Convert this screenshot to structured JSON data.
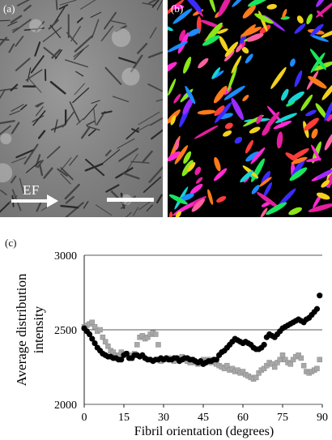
{
  "panels": {
    "a_label": "(a)",
    "b_label": "(b)",
    "c_label": "(c)",
    "ef_label": "EF"
  },
  "colors": {
    "fibril_palette": [
      "#e61ea0",
      "#ff2ad4",
      "#ff3b3b",
      "#ff7a1a",
      "#f2d21b",
      "#8be61a",
      "#19e65c",
      "#1ad4d4",
      "#1a8cff",
      "#3b2bff",
      "#9b2bff",
      "#ff5fa0"
    ],
    "series_black": "#000000",
    "series_gray": "#a8a8a8"
  },
  "chart_data": {
    "type": "scatter",
    "title": "",
    "xlabel": "Fibril orientation (degrees)",
    "ylabel": "Average distribution intensity",
    "xlim": [
      0,
      90
    ],
    "ylim": [
      2000,
      3000
    ],
    "xticks": [
      0,
      15,
      30,
      45,
      60,
      75,
      90
    ],
    "yticks": [
      2000,
      2500,
      3000
    ],
    "grid": "horizontal",
    "legend": "none",
    "series": [
      {
        "marker": "circle",
        "color": "#000000",
        "x": [
          0,
          1,
          2,
          3,
          4,
          5,
          6,
          7,
          8,
          9,
          10,
          11,
          12,
          13,
          14,
          15,
          16,
          17,
          18,
          19,
          20,
          21,
          22,
          23,
          24,
          25,
          26,
          27,
          28,
          29,
          30,
          31,
          32,
          33,
          34,
          35,
          36,
          37,
          38,
          39,
          40,
          41,
          42,
          43,
          44,
          45,
          46,
          47,
          48,
          49,
          50,
          51,
          52,
          53,
          54,
          55,
          56,
          57,
          58,
          59,
          60,
          61,
          62,
          63,
          64,
          65,
          66,
          67,
          68,
          69,
          70,
          71,
          72,
          73,
          74,
          75,
          76,
          77,
          78,
          79,
          80,
          81,
          82,
          83,
          84,
          85,
          86,
          87,
          88,
          89
        ],
        "y": [
          2510,
          2490,
          2470,
          2440,
          2410,
          2380,
          2360,
          2340,
          2330,
          2320,
          2320,
          2310,
          2310,
          2300,
          2300,
          2330,
          2340,
          2310,
          2310,
          2330,
          2330,
          2320,
          2330,
          2310,
          2300,
          2300,
          2290,
          2300,
          2300,
          2310,
          2300,
          2310,
          2300,
          2300,
          2310,
          2310,
          2290,
          2300,
          2310,
          2310,
          2300,
          2300,
          2290,
          2280,
          2290,
          2270,
          2280,
          2290,
          2290,
          2300,
          2300,
          2330,
          2350,
          2360,
          2380,
          2400,
          2420,
          2440,
          2430,
          2420,
          2410,
          2420,
          2410,
          2400,
          2380,
          2370,
          2370,
          2380,
          2400,
          2450,
          2470,
          2460,
          2450,
          2470,
          2490,
          2510,
          2520,
          2530,
          2540,
          2550,
          2560,
          2570,
          2560,
          2550,
          2570,
          2580,
          2600,
          2620,
          2640,
          2730
        ]
      },
      {
        "marker": "square",
        "color": "#a8a8a8",
        "x": [
          0,
          1,
          2,
          3,
          4,
          5,
          6,
          7,
          8,
          9,
          10,
          11,
          12,
          13,
          14,
          15,
          16,
          17,
          18,
          19,
          20,
          21,
          22,
          23,
          24,
          25,
          26,
          27,
          28,
          29,
          30,
          31,
          32,
          33,
          34,
          35,
          36,
          37,
          38,
          39,
          40,
          41,
          42,
          43,
          44,
          45,
          46,
          47,
          48,
          49,
          50,
          51,
          52,
          53,
          54,
          55,
          56,
          57,
          58,
          59,
          60,
          61,
          62,
          63,
          64,
          65,
          66,
          67,
          68,
          69,
          70,
          71,
          72,
          73,
          74,
          75,
          76,
          77,
          78,
          79,
          80,
          81,
          82,
          83,
          84,
          85,
          86,
          87,
          88,
          89
        ],
        "y": [
          2520,
          2530,
          2540,
          2550,
          2520,
          2490,
          2500,
          2450,
          2420,
          2390,
          2360,
          2350,
          2330,
          2330,
          2350,
          2340,
          2340,
          2330,
          2310,
          2340,
          2400,
          2450,
          2460,
          2440,
          2450,
          2470,
          2480,
          2470,
          2400,
          2290,
          2300,
          2300,
          2310,
          2300,
          2290,
          2310,
          2300,
          2320,
          2300,
          2290,
          2280,
          2300,
          2280,
          2270,
          2280,
          2300,
          2290,
          2300,
          2280,
          2290,
          2270,
          2260,
          2250,
          2240,
          2260,
          2230,
          2240,
          2220,
          2230,
          2210,
          2220,
          2200,
          2190,
          2180,
          2170,
          2180,
          2210,
          2230,
          2240,
          2260,
          2280,
          2270,
          2250,
          2280,
          2300,
          2330,
          2300,
          2280,
          2270,
          2300,
          2320,
          2330,
          2310,
          2260,
          2220,
          2210,
          2220,
          2230,
          2240,
          2300
        ]
      }
    ]
  }
}
